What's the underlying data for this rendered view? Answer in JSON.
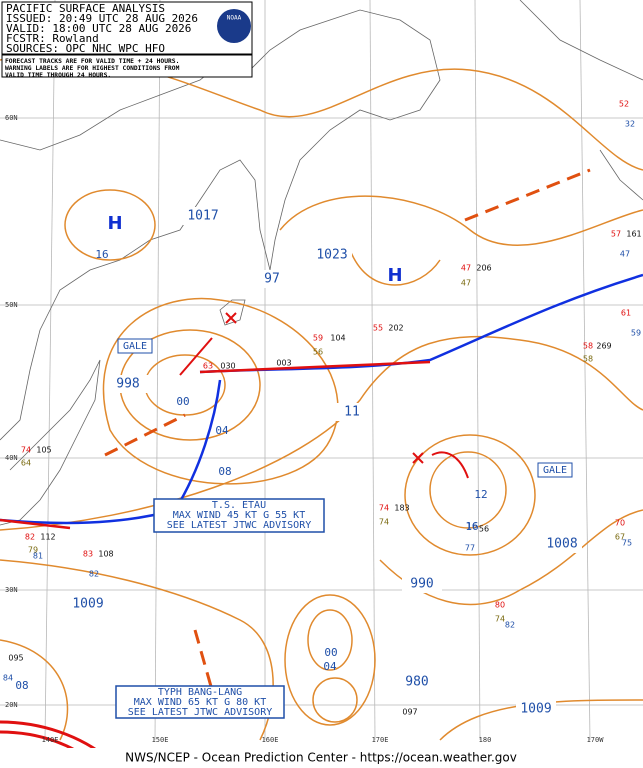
{
  "header": {
    "lines": [
      "PACIFIC SURFACE ANALYSIS",
      "ISSUED: 20:49 UTC 28 AUG 2026",
      "VALID: 18:00 UTC 28 AUG 2026",
      "FCSTR: Rowland",
      "SOURCES: OPC NHC WPC HFO"
    ],
    "agency": "NOAA"
  },
  "note": [
    "FORECAST TRACKS ARE FOR VALID TIME + 24 HOURS.",
    "WARNING LABELS ARE FOR HIGHEST CONDITIONS FROM",
    "VALID TIME THROUGH 24 HOURS."
  ],
  "storms": [
    {
      "lines": [
        "T.S. ETAU",
        "MAX WIND 45 KT G 55 KT",
        "SEE LATEST JTWC ADVISORY"
      ]
    },
    {
      "lines": [
        "TYPH BANG-LANG",
        "MAX WIND 65 KT G 80 KT",
        "SEE LATEST JTWC ADVISORY"
      ]
    }
  ],
  "isobar_labels": [
    "1017",
    "1023",
    "97",
    "998",
    "11",
    "990",
    "1008",
    "1009",
    "980",
    "1009",
    "16",
    "00",
    "04",
    "08",
    "12",
    "16",
    "00",
    "04",
    "08"
  ],
  "centers": [
    "H",
    "H"
  ],
  "gale_labels": [
    "GALE",
    "GALE"
  ],
  "latitudes": [
    "60N",
    "50N",
    "40N",
    "30N",
    "20N"
  ],
  "longitudes": [
    "140E",
    "150E",
    "160E",
    "170E",
    "180",
    "170W"
  ],
  "station_labels": [
    "52",
    "32",
    "57",
    "161",
    "47",
    "47",
    "206",
    "47",
    "59",
    "104",
    "56",
    "55",
    "202",
    "63",
    "030",
    "003",
    "74",
    "105",
    "64",
    "82",
    "112",
    "79",
    "81",
    "83",
    "108",
    "82",
    "74",
    "183",
    "74",
    "58",
    "269",
    "58",
    "61",
    "59",
    "70",
    "67",
    "75",
    "80",
    "74",
    "82",
    "095",
    "84",
    "097",
    "16",
    "77",
    "56"
  ],
  "footer": "NWS/NCEP - Ocean Prediction Center - https://ocean.weather.gov"
}
